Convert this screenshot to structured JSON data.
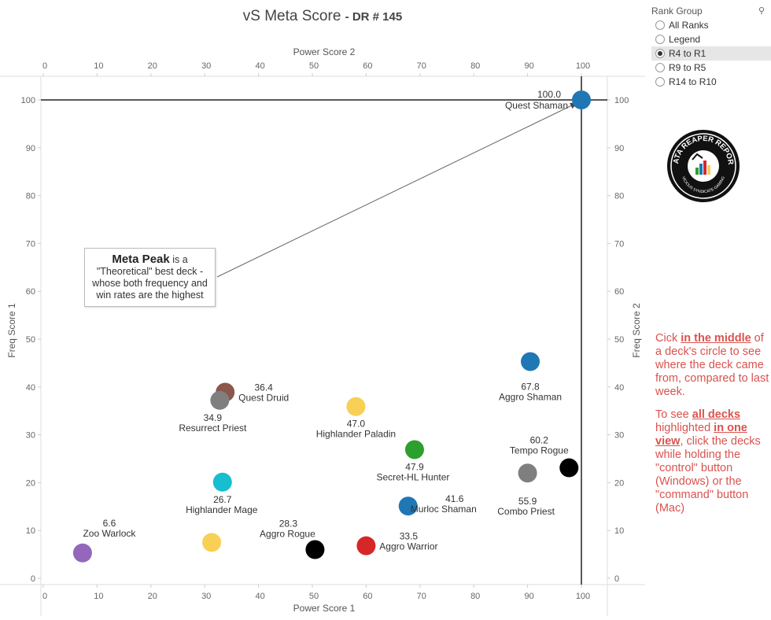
{
  "title": {
    "main": "vS Meta Score",
    "sub": "- DR # 145"
  },
  "filter": {
    "header": "Rank Group",
    "search_glyph": "⚲",
    "options": [
      {
        "label": "All Ranks",
        "selected": false
      },
      {
        "label": "Legend",
        "selected": false
      },
      {
        "label": "R4 to R1",
        "selected": true
      },
      {
        "label": "R9 to R5",
        "selected": false
      },
      {
        "label": "R14 to R10",
        "selected": false
      }
    ]
  },
  "logo": {
    "top_text": "DATA REAPER REPORT",
    "bottom_text": "VICIOUS SYNDICATE GAMING"
  },
  "callout": {
    "bold": "Meta Peak",
    "rest_1": " is a",
    "line2": "\"Theoretical\" best deck -",
    "line3": "whose both frequency and",
    "line4": "win rates are the highest"
  },
  "instructions": {
    "p1_a": "Cick ",
    "p1_b": "in the middle",
    "p1_c": " of a deck's circle to see where the deck came from, compared to last week.",
    "p2_a": "To see ",
    "p2_b": "all decks",
    "p2_c": " highlighted ",
    "p2_d": "in one view",
    "p2_e": ", click the decks while holding the \"control\" button (Windows) or the \"command\" button (Mac)"
  },
  "chart_data": {
    "type": "scatter",
    "title": "vS Meta Score - DR # 145",
    "xlabel_bottom": "Power Score 1",
    "xlabel_top": "Power Score 2",
    "ylabel_left": "Freq Score 1",
    "ylabel_right": "Freq Score 2",
    "xlim": [
      0,
      105
    ],
    "ylim": [
      -1,
      105
    ],
    "xticks": [
      0,
      10,
      20,
      30,
      40,
      50,
      60,
      70,
      80,
      90,
      100
    ],
    "yticks": [
      0,
      10,
      20,
      30,
      40,
      50,
      60,
      70,
      80,
      90,
      100
    ],
    "reference_lines": {
      "x": 100,
      "y": 100
    },
    "points": [
      {
        "name": "Quest Shaman",
        "score": "100.0",
        "x": 100,
        "y": 100,
        "color": "#1f77b4"
      },
      {
        "name": "Aggro Shaman",
        "score": "67.8",
        "x": 90.5,
        "y": 45.3,
        "color": "#1f77b4"
      },
      {
        "name": "Quest Druid",
        "score": "36.4",
        "x": 33.8,
        "y": 38.9,
        "color": "#8c564b"
      },
      {
        "name": "Resurrect Priest",
        "score": "34.9",
        "x": 32.8,
        "y": 37.2,
        "color": "#7f7f7f"
      },
      {
        "name": "Highlander Paladin",
        "score": "47.0",
        "x": 58.1,
        "y": 35.9,
        "color": "#f7d055"
      },
      {
        "name": "Secret-HL Hunter",
        "score": "47.9",
        "x": 69.0,
        "y": 26.9,
        "color": "#2ca02c"
      },
      {
        "name": "Tempo Rogue",
        "score": "60.2",
        "x": 97.7,
        "y": 23.1,
        "color": "#000000"
      },
      {
        "name": "Combo Priest",
        "score": "55.9",
        "x": 90.0,
        "y": 22.0,
        "color": "#7f7f7f"
      },
      {
        "name": "Highlander Mage",
        "score": "26.7",
        "x": 33.3,
        "y": 20.1,
        "color": "#17becf"
      },
      {
        "name": "Murloc Shaman",
        "score": "41.6",
        "x": 67.8,
        "y": 15.1,
        "color": "#1f77b4"
      },
      {
        "name": "",
        "score": "",
        "x": 31.3,
        "y": 7.5,
        "color": "#f7d055"
      },
      {
        "name": "Aggro Rogue",
        "score": "28.3",
        "x": 50.5,
        "y": 6.0,
        "color": "#000000"
      },
      {
        "name": "Aggro Warrior",
        "score": "33.5",
        "x": 60.0,
        "y": 6.8,
        "color": "#d62728"
      },
      {
        "name": "Zoo Warlock",
        "score": "6.6",
        "x": 7.3,
        "y": 5.3,
        "color": "#9467bd"
      }
    ]
  }
}
